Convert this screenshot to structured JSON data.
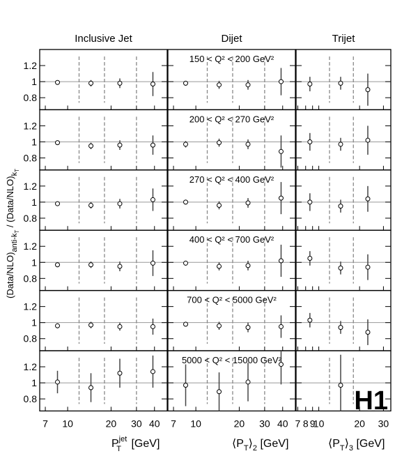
{
  "chart_data": {
    "type": "scatter",
    "logo": "H1",
    "y_axis_title": "(Data/NLO)",
    "y_axis_title_sub": "anti-k",
    "y_axis_title_sub2": "T",
    "y_axis_title_mid": " / (Data/NLO)",
    "y_axis_title_sub3": "k",
    "y_axis_title_sub4": "T",
    "ylim": [
      0.65,
      1.4
    ],
    "yticks": [
      "0.8",
      "1",
      "1.2"
    ],
    "reference_line": 1,
    "columns": [
      {
        "title": "Inclusive Jet",
        "xtitle": "P",
        "xtitle_sup": "jet",
        "xtitle_sub": "T",
        "xtitle_unit": " [GeV]",
        "xlim": [
          6.4,
          49
        ],
        "xticks": [
          "7",
          "10",
          "20",
          "30",
          "40"
        ],
        "bin_edges": [
          12,
          18,
          30
        ]
      },
      {
        "title": "Dijet",
        "xtitle": "⟨P",
        "xtitle_sub": "T",
        "xtitle_tail": "⟩",
        "xtitle_sub2": "2",
        "xtitle_unit": " [GeV]",
        "xlim": [
          6.4,
          49
        ],
        "xticks": [
          "7",
          "10",
          "20",
          "30",
          "40"
        ],
        "bin_edges": [
          12,
          18,
          30
        ]
      },
      {
        "title": "Trijet",
        "xtitle": "⟨P",
        "xtitle_sub": "T",
        "xtitle_tail": "⟩",
        "xtitle_sub2": "3",
        "xtitle_unit": " [GeV]",
        "xlim": [
          6.8,
          34
        ],
        "xticks": [
          "7",
          "8",
          "9",
          "10",
          "20",
          "30"
        ],
        "bin_edges": [
          12,
          18
        ]
      }
    ],
    "rows": [
      {
        "label": "150 < Q² < 200 GeV²",
        "series": [
          {
            "x": [
              8.5,
              14.5,
              23,
              39
            ],
            "y": [
              0.99,
              0.98,
              0.98,
              0.97
            ],
            "err": [
              0.02,
              0.04,
              0.06,
              0.15
            ]
          },
          {
            "x": [
              8.5,
              14.5,
              23,
              39
            ],
            "y": [
              0.98,
              0.96,
              0.96,
              1.0
            ],
            "err": [
              0.03,
              0.05,
              0.06,
              0.17
            ]
          },
          {
            "x": [
              8.6,
              14.5,
              23
            ],
            "y": [
              0.97,
              0.98,
              0.9
            ],
            "err": [
              0.09,
              0.08,
              0.2
            ]
          }
        ]
      },
      {
        "label": "200 < Q² < 270 GeV²",
        "series": [
          {
            "x": [
              8.5,
              14.5,
              23,
              39
            ],
            "y": [
              0.99,
              0.95,
              0.96,
              0.96
            ],
            "err": [
              0.02,
              0.04,
              0.06,
              0.12
            ]
          },
          {
            "x": [
              8.5,
              14.5,
              23,
              39
            ],
            "y": [
              0.97,
              0.99,
              0.97,
              0.88
            ],
            "err": [
              0.04,
              0.05,
              0.06,
              0.2
            ]
          },
          {
            "x": [
              8.6,
              14.5,
              23
            ],
            "y": [
              1.0,
              0.97,
              1.02
            ],
            "err": [
              0.11,
              0.08,
              0.18
            ]
          }
        ]
      },
      {
        "label": "270 < Q² < 400 GeV²",
        "series": [
          {
            "x": [
              8.5,
              14.5,
              23,
              39
            ],
            "y": [
              0.98,
              0.96,
              0.98,
              1.03
            ],
            "err": [
              0.02,
              0.04,
              0.06,
              0.14
            ]
          },
          {
            "x": [
              8.5,
              14.5,
              23,
              39
            ],
            "y": [
              1.0,
              0.96,
              0.99,
              1.05
            ],
            "err": [
              0.03,
              0.05,
              0.06,
              0.2
            ]
          },
          {
            "x": [
              8.6,
              14.5,
              23
            ],
            "y": [
              1.0,
              0.95,
              1.04
            ],
            "err": [
              0.11,
              0.08,
              0.16
            ]
          }
        ]
      },
      {
        "label": "400 < Q² < 700 GeV²",
        "series": [
          {
            "x": [
              8.5,
              14.5,
              23,
              39
            ],
            "y": [
              0.97,
              0.97,
              0.95,
              0.99
            ],
            "err": [
              0.03,
              0.04,
              0.06,
              0.16
            ]
          },
          {
            "x": [
              8.5,
              14.5,
              23,
              39
            ],
            "y": [
              0.99,
              0.95,
              0.96,
              1.02
            ],
            "err": [
              0.03,
              0.05,
              0.06,
              0.2
            ]
          },
          {
            "x": [
              8.6,
              14.5,
              23
            ],
            "y": [
              1.05,
              0.93,
              0.94
            ],
            "err": [
              0.09,
              0.08,
              0.16
            ]
          }
        ]
      },
      {
        "label": "700 < Q² < 5000 GeV²",
        "series": [
          {
            "x": [
              8.5,
              14.5,
              23,
              39
            ],
            "y": [
              0.96,
              0.97,
              0.95,
              0.95
            ],
            "err": [
              0.03,
              0.04,
              0.05,
              0.1
            ]
          },
          {
            "x": [
              8.5,
              14.5,
              23,
              39
            ],
            "y": [
              0.98,
              0.96,
              0.94,
              0.95
            ],
            "err": [
              0.03,
              0.05,
              0.06,
              0.14
            ]
          },
          {
            "x": [
              8.6,
              14.5,
              23
            ],
            "y": [
              1.03,
              0.94,
              0.88
            ],
            "err": [
              0.09,
              0.08,
              0.16
            ]
          }
        ]
      },
      {
        "label": "5000 < Q² < 15000 GeV²",
        "series": [
          {
            "x": [
              8.5,
              14.5,
              23,
              39
            ],
            "y": [
              1.01,
              0.94,
              1.12,
              1.14
            ],
            "err": [
              0.14,
              0.18,
              0.18,
              0.2
            ]
          },
          {
            "x": [
              8.5,
              14.5,
              23,
              39
            ],
            "y": [
              0.97,
              0.89,
              1.01,
              1.23
            ],
            "err": [
              0.26,
              0.24,
              0.24,
              0.25
            ]
          },
          {
            "x": [
              14.5
            ],
            "y": [
              0.97
            ],
            "err": [
              0.38
            ]
          }
        ]
      }
    ]
  }
}
